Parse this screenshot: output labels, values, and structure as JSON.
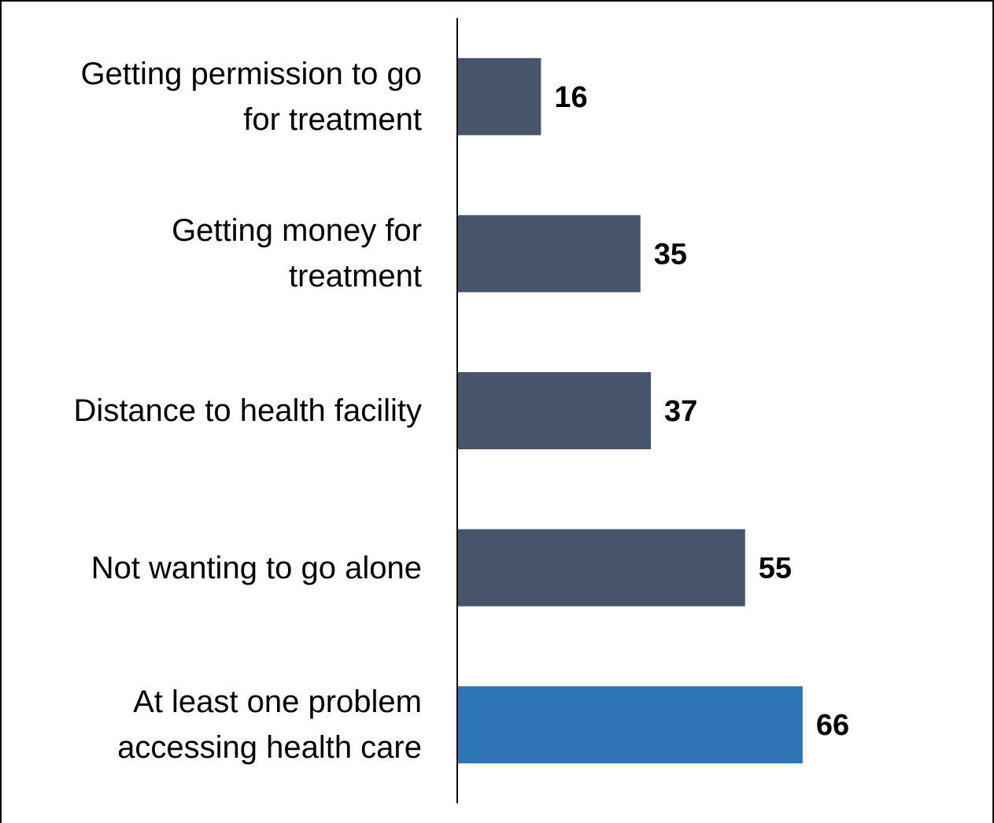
{
  "chart_data": {
    "type": "bar",
    "orientation": "horizontal",
    "categories": [
      "Getting permission to go\nfor treatment",
      "Getting money for\ntreatment",
      "Distance to health facility",
      "Not wanting to go alone",
      "At least one problem\naccessing health care"
    ],
    "values": [
      16,
      35,
      37,
      55,
      66
    ],
    "colors": [
      "#465569",
      "#465569",
      "#465569",
      "#465569",
      "#2e75b6"
    ],
    "xlim": [
      0,
      100
    ]
  }
}
